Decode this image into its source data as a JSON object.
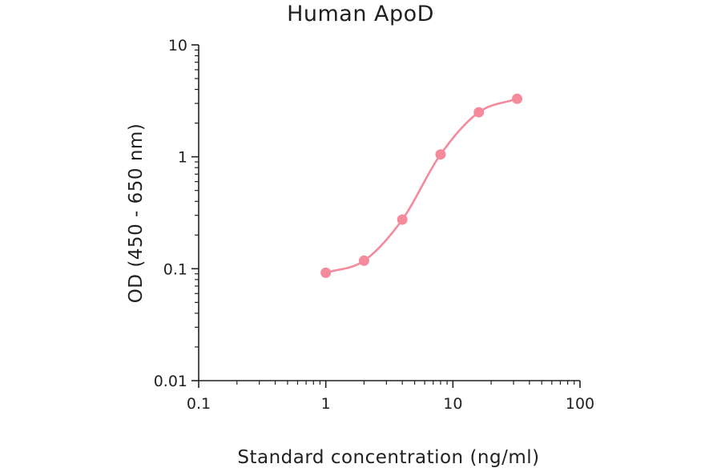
{
  "chart_data": {
    "type": "line",
    "title": "Human ApoD",
    "xlabel": "Standard concentration (ng/ml)",
    "ylabel": "OD (450 - 650 nm)",
    "x_scale": "log",
    "y_scale": "log",
    "xlim": [
      0.1,
      100
    ],
    "ylim": [
      0.01,
      10
    ],
    "x_ticks": [
      "0.1",
      "1",
      "10",
      "100"
    ],
    "y_ticks": [
      "0.01",
      "0.1",
      "1",
      "10"
    ],
    "grid": false,
    "series": [
      {
        "x": [
          1,
          2,
          4,
          8,
          16,
          32
        ],
        "y": [
          0.092,
          0.118,
          0.275,
          1.05,
          2.5,
          3.3
        ]
      }
    ],
    "colors": {
      "series": "#f48a9c",
      "axis": "#231f20"
    }
  }
}
